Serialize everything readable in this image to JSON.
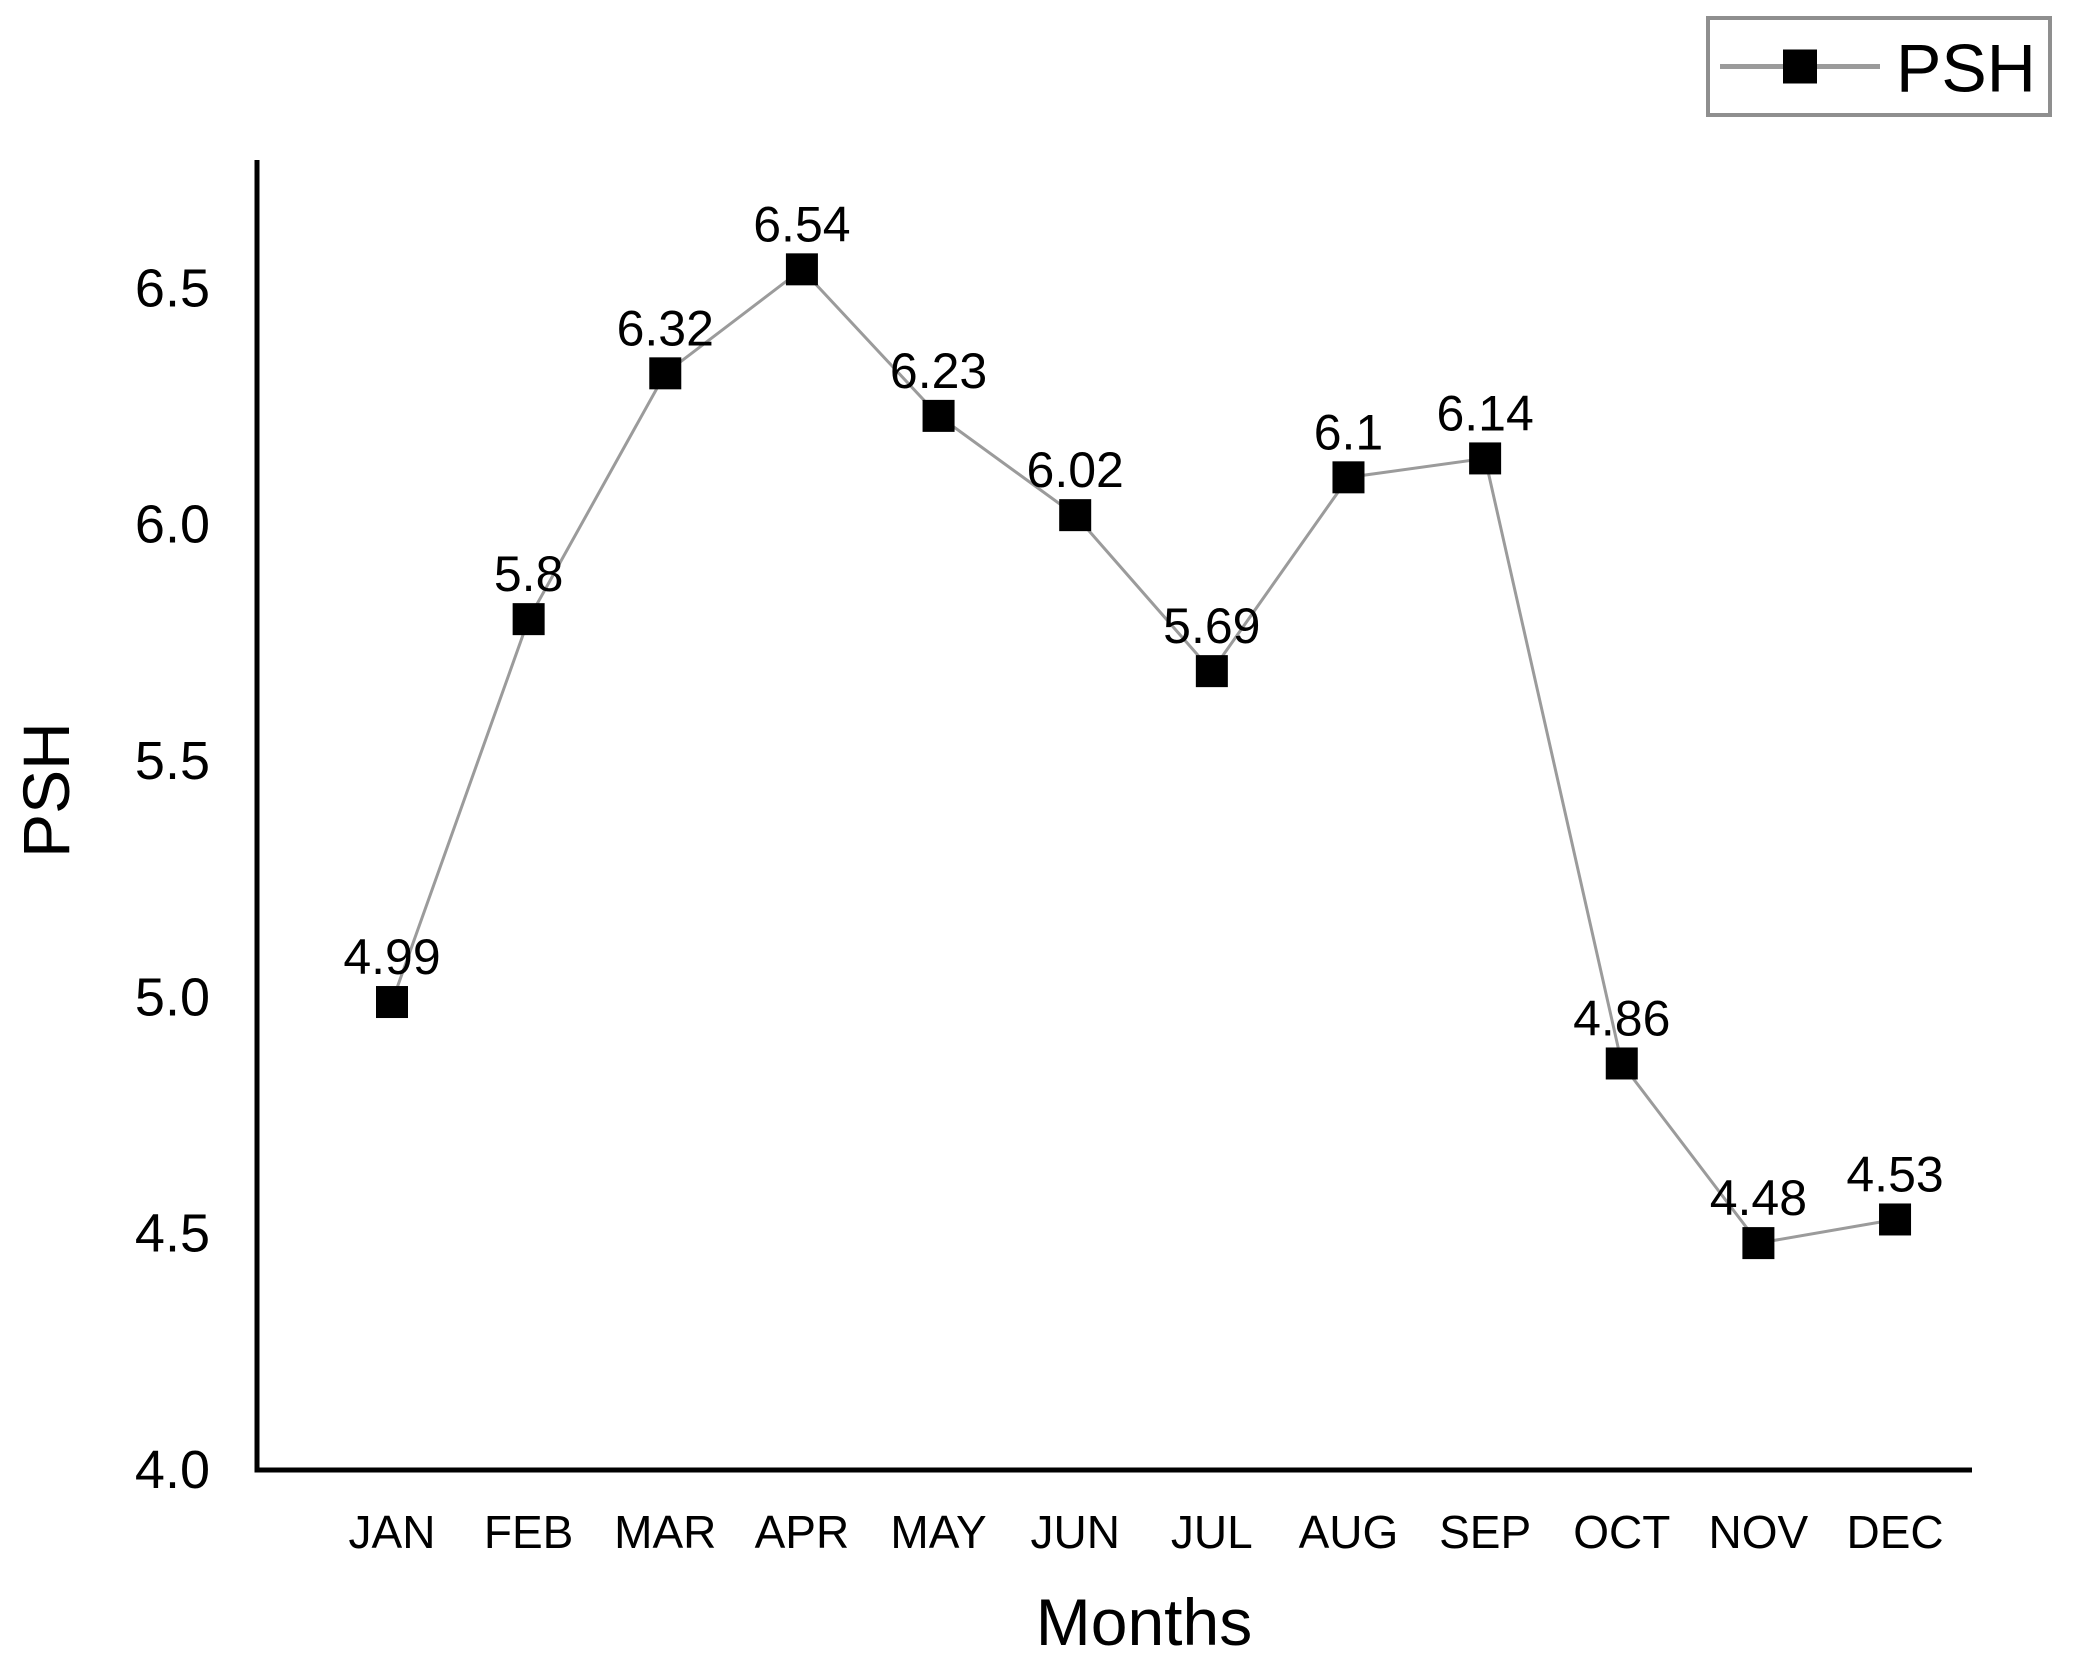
{
  "chart_data": {
    "type": "line",
    "title": "",
    "xlabel": "Months",
    "ylabel": "PSH",
    "categories": [
      "JAN",
      "FEB",
      "MAR",
      "APR",
      "MAY",
      "JUN",
      "JUL",
      "AUG",
      "SEP",
      "OCT",
      "NOV",
      "DEC"
    ],
    "series": [
      {
        "name": "PSH",
        "values": [
          4.99,
          5.8,
          6.32,
          6.54,
          6.23,
          6.02,
          5.69,
          6.1,
          6.14,
          4.86,
          4.48,
          4.53
        ],
        "data_labels": [
          "4.99",
          "5.8",
          "6.32",
          "6.54",
          "6.23",
          "6.02",
          "5.69",
          "6.1",
          "6.14",
          "4.86",
          "4.48",
          "4.53"
        ],
        "marker_shape": "square"
      }
    ],
    "y_ticks": [
      "6.5",
      "6.0",
      "5.5",
      "5.0",
      "4.5",
      "4.0"
    ],
    "ylim": [
      4.0,
      6.77
    ],
    "grid": false,
    "legend": {
      "position": "top-right",
      "entries": [
        {
          "label": "PSH",
          "marker": "black-square"
        }
      ]
    },
    "colors": {
      "line": "#9b9b9b",
      "marker": "#000000",
      "text": "#000000",
      "axis": "#000000",
      "legend_border": "#8f8f8f",
      "background": "#ffffff"
    }
  }
}
